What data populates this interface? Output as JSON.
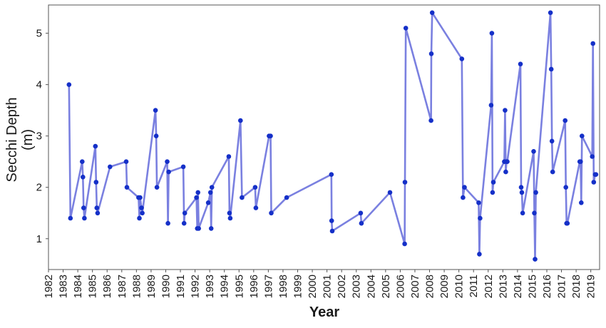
{
  "chart_data": {
    "type": "line",
    "title": "",
    "xlabel": "Year",
    "ylabel_line1": "Secchi Depth",
    "ylabel_line2": "(m)",
    "xlim": [
      1982,
      2019.6
    ],
    "ylim": [
      0.4,
      5.55
    ],
    "x_ticks": [
      "1982",
      "1983",
      "1984",
      "1985",
      "1986",
      "1987",
      "1988",
      "1989",
      "1990",
      "1991",
      "1992",
      "1993",
      "1994",
      "1995",
      "1996",
      "1997",
      "1998",
      "1999",
      "2000",
      "2001",
      "2002",
      "2003",
      "2004",
      "2005",
      "2006",
      "2007",
      "2008",
      "2009",
      "2010",
      "2011",
      "2012",
      "2013",
      "2014",
      "2015",
      "2016",
      "2017",
      "2018",
      "2019"
    ],
    "y_ticks": [
      "1",
      "2",
      "3",
      "4",
      "5"
    ],
    "grid": false,
    "colors": {
      "line": "#7a80e0",
      "point": "#1530c8",
      "frame": "#555555"
    },
    "series": [
      {
        "x": [
          1983.4,
          1983.5,
          1984.3,
          1984.35,
          1984.4,
          1984.45,
          1985.2,
          1985.25,
          1985.3,
          1985.35,
          1986.2,
          1987.3,
          1987.35,
          1988.15,
          1988.2,
          1988.25,
          1988.35,
          1988.4,
          1989.3,
          1989.35,
          1989.4,
          1990.1,
          1990.15,
          1990.2,
          1991.2,
          1991.25,
          1991.3,
          1992.1,
          1992.15,
          1992.2,
          1992.25,
          1992.9,
          1993.05,
          1993.1,
          1993.15,
          1994.3,
          1994.35,
          1994.4,
          1995.1,
          1995.2,
          1996.1,
          1996.15,
          1997.05,
          1997.15,
          1997.2,
          1998.25,
          2001.3,
          2001.32,
          2001.36,
          2003.3,
          2003.35,
          2005.3,
          2006.3,
          2006.32,
          2006.38,
          2008.1,
          2008.12,
          2008.18,
          2010.2,
          2010.28,
          2010.38,
          2011.35,
          2011.4,
          2011.45,
          2012.2,
          2012.25,
          2012.3,
          2012.35,
          2013.1,
          2013.15,
          2013.2,
          2013.25,
          2013.3,
          2014.2,
          2014.25,
          2014.3,
          2014.35,
          2015.1,
          2015.15,
          2015.2,
          2015.25,
          2016.25,
          2016.3,
          2016.35,
          2016.4,
          2017.25,
          2017.3,
          2017.35,
          2017.4,
          2018.25,
          2018.3,
          2018.35,
          2018.4,
          2019.1,
          2019.15,
          2019.2,
          2019.3,
          2019.35
        ],
        "y": [
          4.0,
          1.4,
          2.5,
          2.2,
          1.6,
          1.4,
          2.8,
          2.1,
          1.6,
          1.5,
          2.4,
          2.5,
          2.0,
          1.8,
          1.4,
          1.8,
          1.6,
          1.5,
          3.5,
          3.0,
          2.0,
          2.5,
          1.3,
          2.3,
          2.4,
          1.3,
          1.5,
          1.8,
          1.2,
          1.9,
          1.2,
          1.7,
          1.9,
          1.2,
          2.0,
          2.6,
          1.5,
          1.4,
          3.3,
          1.8,
          2.0,
          1.6,
          3.0,
          3.0,
          1.5,
          1.8,
          2.25,
          1.35,
          1.15,
          1.5,
          1.3,
          1.9,
          0.9,
          2.1,
          5.1,
          3.3,
          4.6,
          5.4,
          4.5,
          1.8,
          2.0,
          1.7,
          0.7,
          1.4,
          3.6,
          5.0,
          1.9,
          2.1,
          2.5,
          3.5,
          2.3,
          2.5,
          2.5,
          4.4,
          2.0,
          1.9,
          1.5,
          2.7,
          1.5,
          0.6,
          1.9,
          5.4,
          4.3,
          2.9,
          2.3,
          3.3,
          2.0,
          1.3,
          1.3,
          2.5,
          2.5,
          1.7,
          3.0,
          2.6,
          4.8,
          2.1,
          2.25,
          2.25
        ]
      }
    ]
  }
}
